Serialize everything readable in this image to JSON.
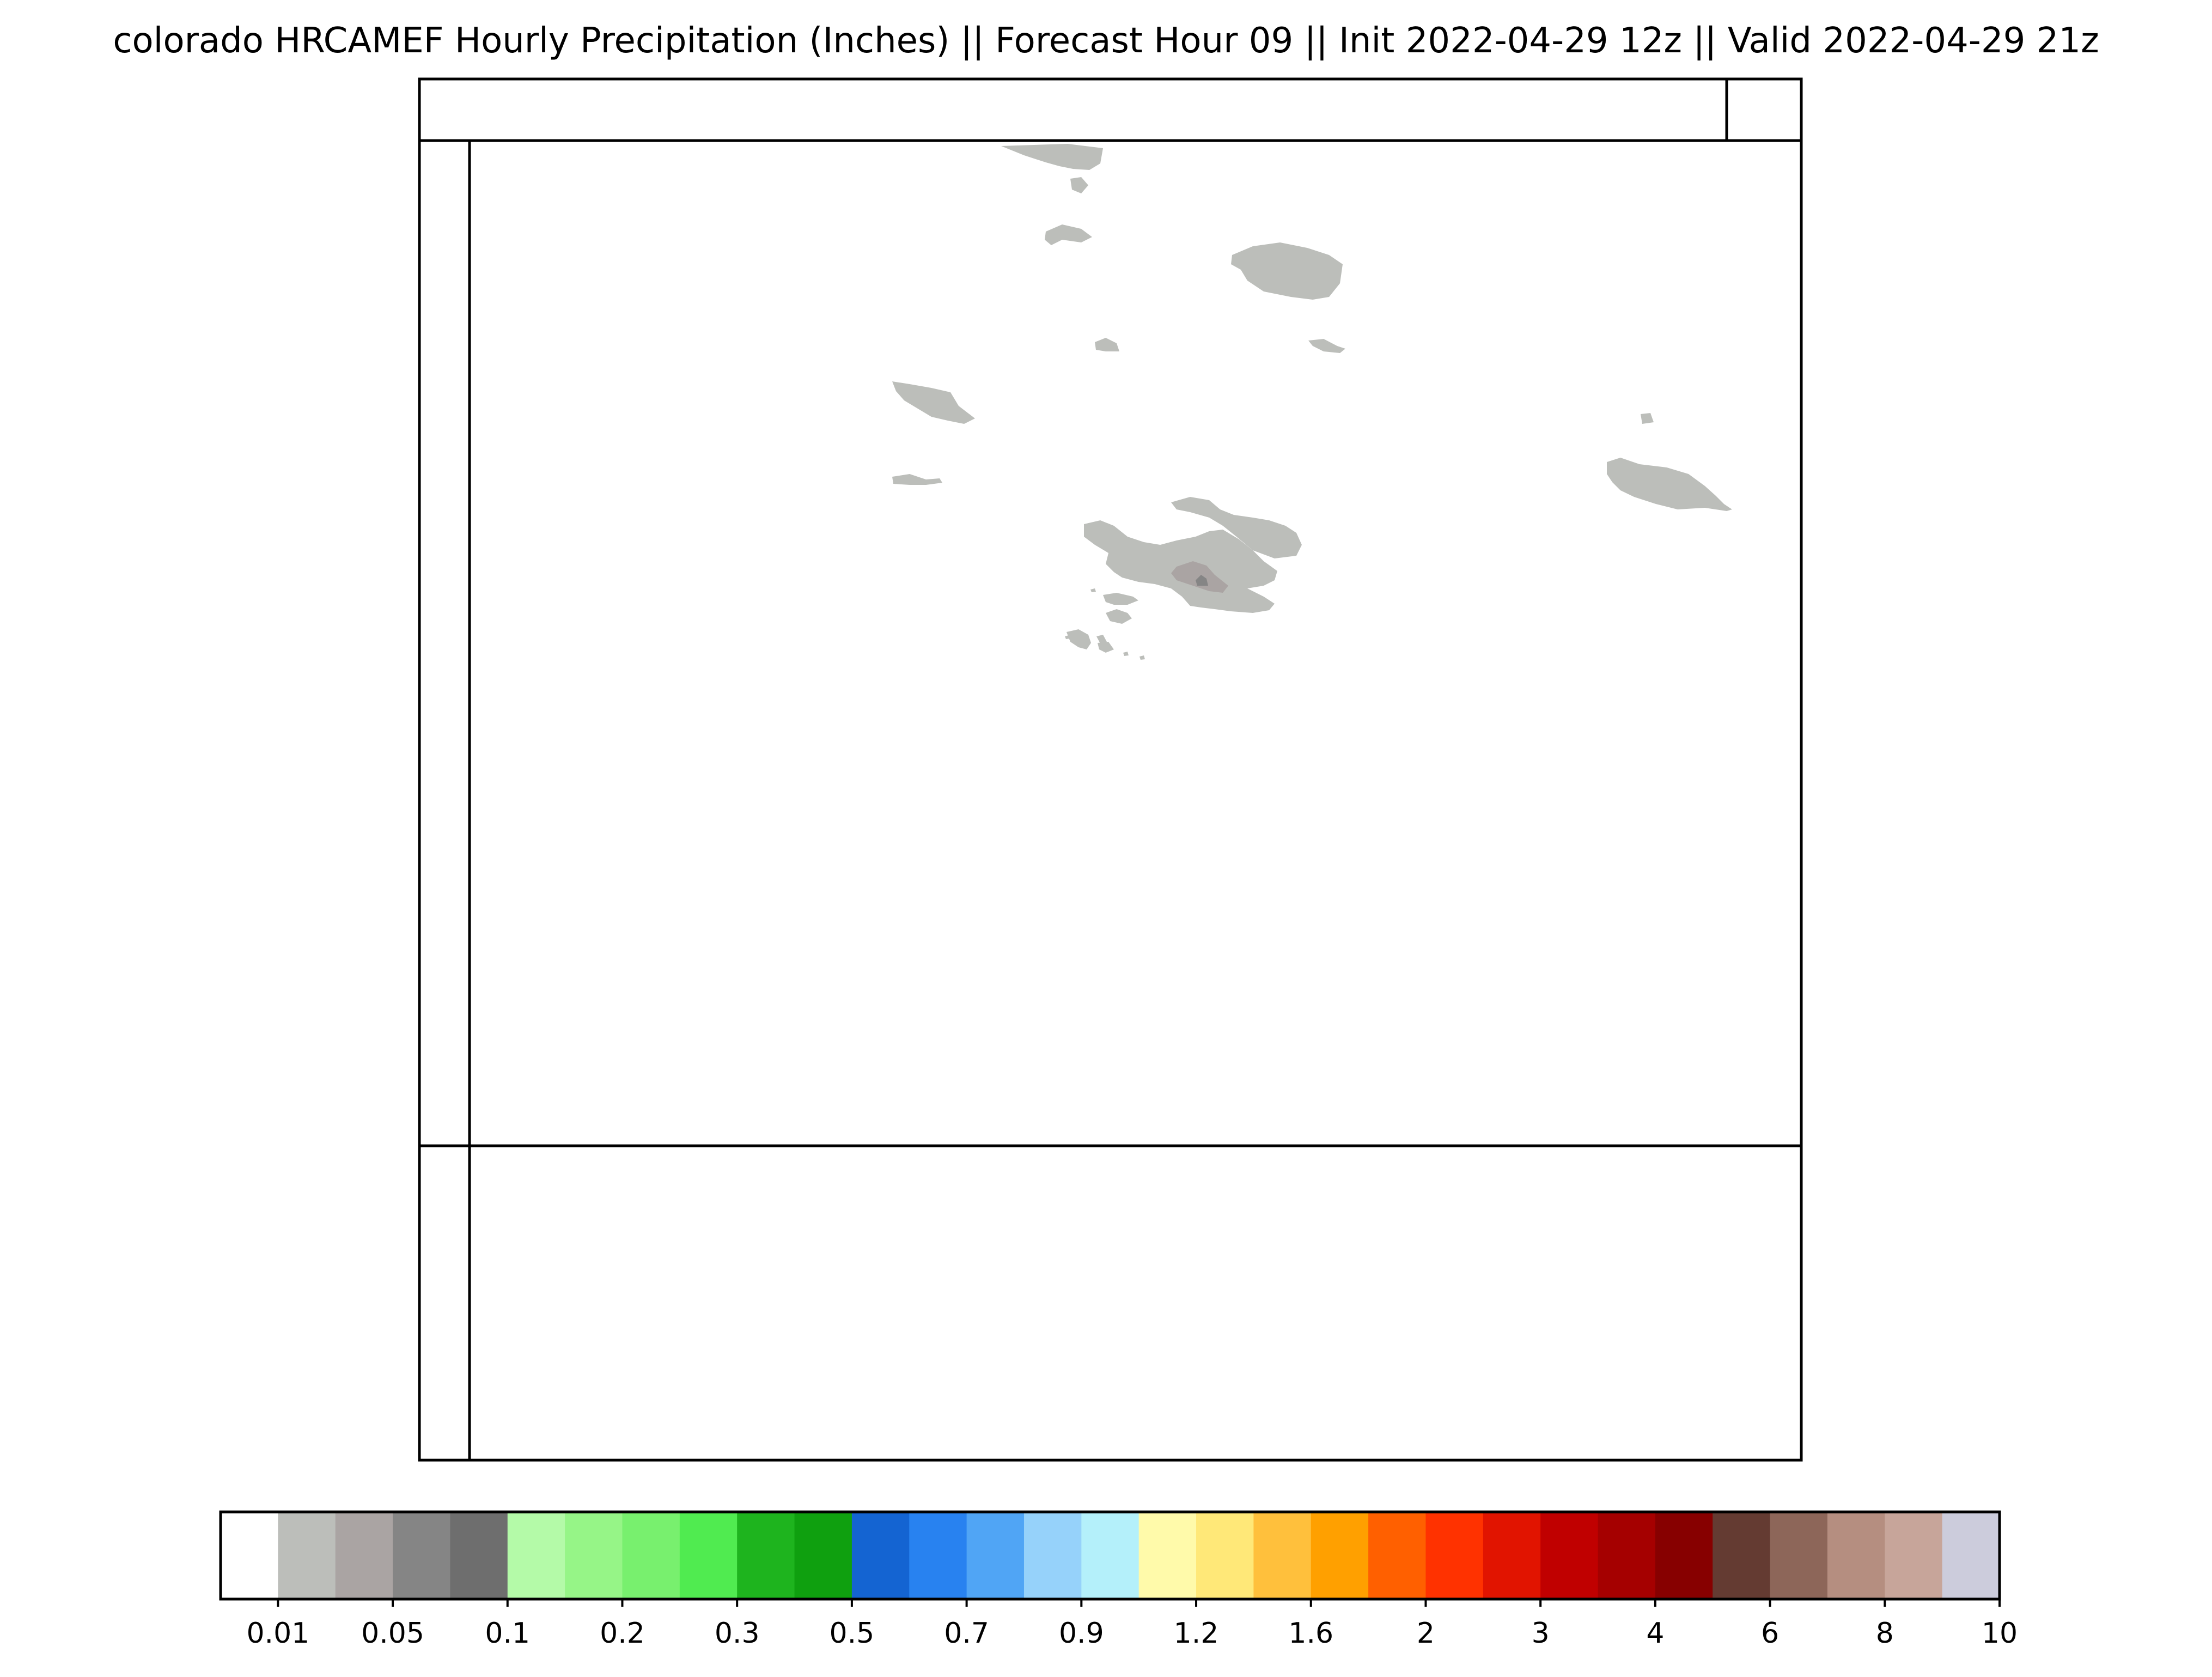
{
  "title": "colorado HRCAMEF Hourly Precipitation (Inches) || Forecast Hour 09 || Init 2022-04-29 12z || Valid 2022-04-29 21z",
  "colorbar": {
    "bins": [
      {
        "color": "#ffffff"
      },
      {
        "color": "#bcbeba"
      },
      {
        "color": "#aaa4a3"
      },
      {
        "color": "#858585"
      },
      {
        "color": "#6e6e6e"
      },
      {
        "color": "#b4faa8"
      },
      {
        "color": "#96f587"
      },
      {
        "color": "#78f06e"
      },
      {
        "color": "#50eb50"
      },
      {
        "color": "#1eb41e"
      },
      {
        "color": "#0fa00f"
      },
      {
        "color": "#1464d2"
      },
      {
        "color": "#2882f0"
      },
      {
        "color": "#50a5f5"
      },
      {
        "color": "#96d2fa"
      },
      {
        "color": "#b4f0fa"
      },
      {
        "color": "#fffaaa"
      },
      {
        "color": "#ffe878"
      },
      {
        "color": "#ffc03c"
      },
      {
        "color": "#ffa000"
      },
      {
        "color": "#ff6000"
      },
      {
        "color": "#ff3200"
      },
      {
        "color": "#e11400"
      },
      {
        "color": "#c00000"
      },
      {
        "color": "#a50000"
      },
      {
        "color": "#870000"
      },
      {
        "color": "#643b32"
      },
      {
        "color": "#8d6659"
      },
      {
        "color": "#b58e80"
      },
      {
        "color": "#c7a59a"
      },
      {
        "color": "#ccccdc"
      }
    ],
    "tick_labels": [
      "0.01",
      "0.05",
      "0.1",
      "0.2",
      "0.3",
      "0.5",
      "0.7",
      "0.9",
      "1.2",
      "1.6",
      "2",
      "3",
      "4",
      "6",
      "8",
      "10"
    ]
  },
  "map": {
    "precip_color_light": "#bcbeba",
    "precip_color_medium": "#aaa4a3",
    "precip_color_heavy": "#858585"
  }
}
